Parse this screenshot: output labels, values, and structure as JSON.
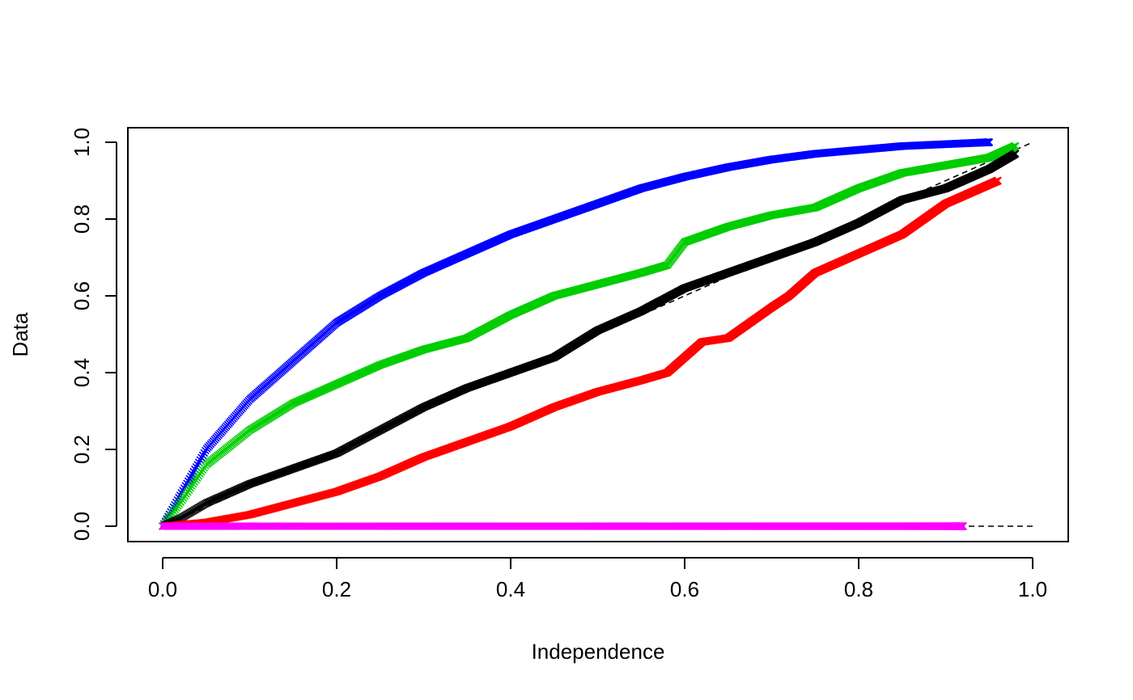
{
  "chart_data": {
    "type": "scatter",
    "xlabel": "Independence",
    "ylabel": "Data",
    "xlim": [
      0,
      1
    ],
    "ylim": [
      0,
      1
    ],
    "x_ticks": [
      "0.0",
      "0.2",
      "0.4",
      "0.6",
      "0.8",
      "1.0"
    ],
    "y_ticks": [
      "0.0",
      "0.2",
      "0.4",
      "0.6",
      "0.8",
      "1.0"
    ],
    "marker": "x",
    "grid": false,
    "legend": "none",
    "reference_lines": [
      {
        "style": "dashed",
        "color": "#000000",
        "x": [
          0,
          1
        ],
        "y": [
          0,
          1
        ]
      },
      {
        "style": "dashed",
        "color": "#000000",
        "x": [
          0,
          1
        ],
        "y": [
          0,
          0
        ]
      }
    ],
    "series": [
      {
        "color": "#0000ff",
        "x_max": 0.95,
        "points": [
          [
            0,
            0
          ],
          [
            0.02,
            0.08
          ],
          [
            0.05,
            0.2
          ],
          [
            0.1,
            0.33
          ],
          [
            0.15,
            0.43
          ],
          [
            0.2,
            0.53
          ],
          [
            0.25,
            0.6
          ],
          [
            0.3,
            0.66
          ],
          [
            0.35,
            0.71
          ],
          [
            0.4,
            0.76
          ],
          [
            0.45,
            0.8
          ],
          [
            0.5,
            0.84
          ],
          [
            0.55,
            0.88
          ],
          [
            0.6,
            0.91
          ],
          [
            0.65,
            0.935
          ],
          [
            0.7,
            0.955
          ],
          [
            0.75,
            0.97
          ],
          [
            0.8,
            0.98
          ],
          [
            0.85,
            0.99
          ],
          [
            0.9,
            0.995
          ],
          [
            0.95,
            1.0
          ]
        ]
      },
      {
        "color": "#00cd00",
        "x_max": 0.98,
        "points": [
          [
            0,
            0
          ],
          [
            0.02,
            0.06
          ],
          [
            0.05,
            0.16
          ],
          [
            0.1,
            0.25
          ],
          [
            0.15,
            0.32
          ],
          [
            0.2,
            0.37
          ],
          [
            0.25,
            0.42
          ],
          [
            0.3,
            0.46
          ],
          [
            0.35,
            0.49
          ],
          [
            0.4,
            0.55
          ],
          [
            0.45,
            0.6
          ],
          [
            0.5,
            0.63
          ],
          [
            0.55,
            0.66
          ],
          [
            0.58,
            0.68
          ],
          [
            0.6,
            0.74
          ],
          [
            0.65,
            0.78
          ],
          [
            0.7,
            0.81
          ],
          [
            0.75,
            0.83
          ],
          [
            0.8,
            0.88
          ],
          [
            0.85,
            0.92
          ],
          [
            0.9,
            0.94
          ],
          [
            0.95,
            0.96
          ],
          [
            0.98,
            0.99
          ]
        ]
      },
      {
        "color": "#000000",
        "x_max": 0.98,
        "points": [
          [
            0,
            0
          ],
          [
            0.02,
            0.02
          ],
          [
            0.05,
            0.06
          ],
          [
            0.1,
            0.11
          ],
          [
            0.15,
            0.15
          ],
          [
            0.2,
            0.19
          ],
          [
            0.25,
            0.25
          ],
          [
            0.3,
            0.31
          ],
          [
            0.35,
            0.36
          ],
          [
            0.4,
            0.4
          ],
          [
            0.45,
            0.44
          ],
          [
            0.5,
            0.51
          ],
          [
            0.55,
            0.56
          ],
          [
            0.6,
            0.62
          ],
          [
            0.65,
            0.66
          ],
          [
            0.7,
            0.7
          ],
          [
            0.75,
            0.74
          ],
          [
            0.8,
            0.79
          ],
          [
            0.85,
            0.85
          ],
          [
            0.9,
            0.88
          ],
          [
            0.95,
            0.93
          ],
          [
            0.98,
            0.97
          ]
        ]
      },
      {
        "color": "#ff0000",
        "x_max": 0.96,
        "points": [
          [
            0,
            0
          ],
          [
            0.05,
            0.01
          ],
          [
            0.1,
            0.03
          ],
          [
            0.15,
            0.06
          ],
          [
            0.2,
            0.09
          ],
          [
            0.25,
            0.13
          ],
          [
            0.3,
            0.18
          ],
          [
            0.35,
            0.22
          ],
          [
            0.4,
            0.26
          ],
          [
            0.45,
            0.31
          ],
          [
            0.5,
            0.35
          ],
          [
            0.55,
            0.38
          ],
          [
            0.58,
            0.4
          ],
          [
            0.6,
            0.44
          ],
          [
            0.62,
            0.48
          ],
          [
            0.65,
            0.49
          ],
          [
            0.7,
            0.57
          ],
          [
            0.72,
            0.6
          ],
          [
            0.75,
            0.66
          ],
          [
            0.8,
            0.71
          ],
          [
            0.85,
            0.76
          ],
          [
            0.9,
            0.84
          ],
          [
            0.96,
            0.9
          ]
        ]
      },
      {
        "color": "#ff00ff",
        "x_max": 0.92,
        "points": [
          [
            0,
            0
          ],
          [
            0.92,
            0
          ]
        ]
      }
    ]
  }
}
